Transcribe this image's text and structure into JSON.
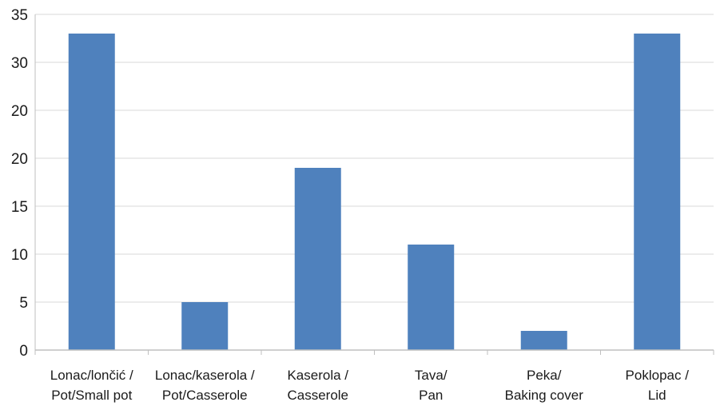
{
  "chart_data": {
    "type": "bar",
    "categories": [
      [
        "Lonac/lončić /",
        "Pot/Small pot"
      ],
      [
        "Lonac/kaserola /",
        "Pot/Casserole"
      ],
      [
        "Kaserola /",
        "Casserole"
      ],
      [
        "Tava/",
        "Pan"
      ],
      [
        "Peka/",
        "Baking cover"
      ],
      [
        "Poklopac /",
        "Lid"
      ]
    ],
    "values": [
      33,
      5,
      19,
      11,
      2,
      33
    ],
    "y_tick_labels": [
      "0",
      "5",
      "10",
      "15",
      "20",
      "20",
      "30",
      "35"
    ],
    "ylim": [
      0,
      35
    ],
    "grid": "horizontal",
    "legend": "none",
    "bar_color": "#4f81bd",
    "grid_color": "#d9d9d9",
    "axis_color": "#bfbfbf"
  }
}
